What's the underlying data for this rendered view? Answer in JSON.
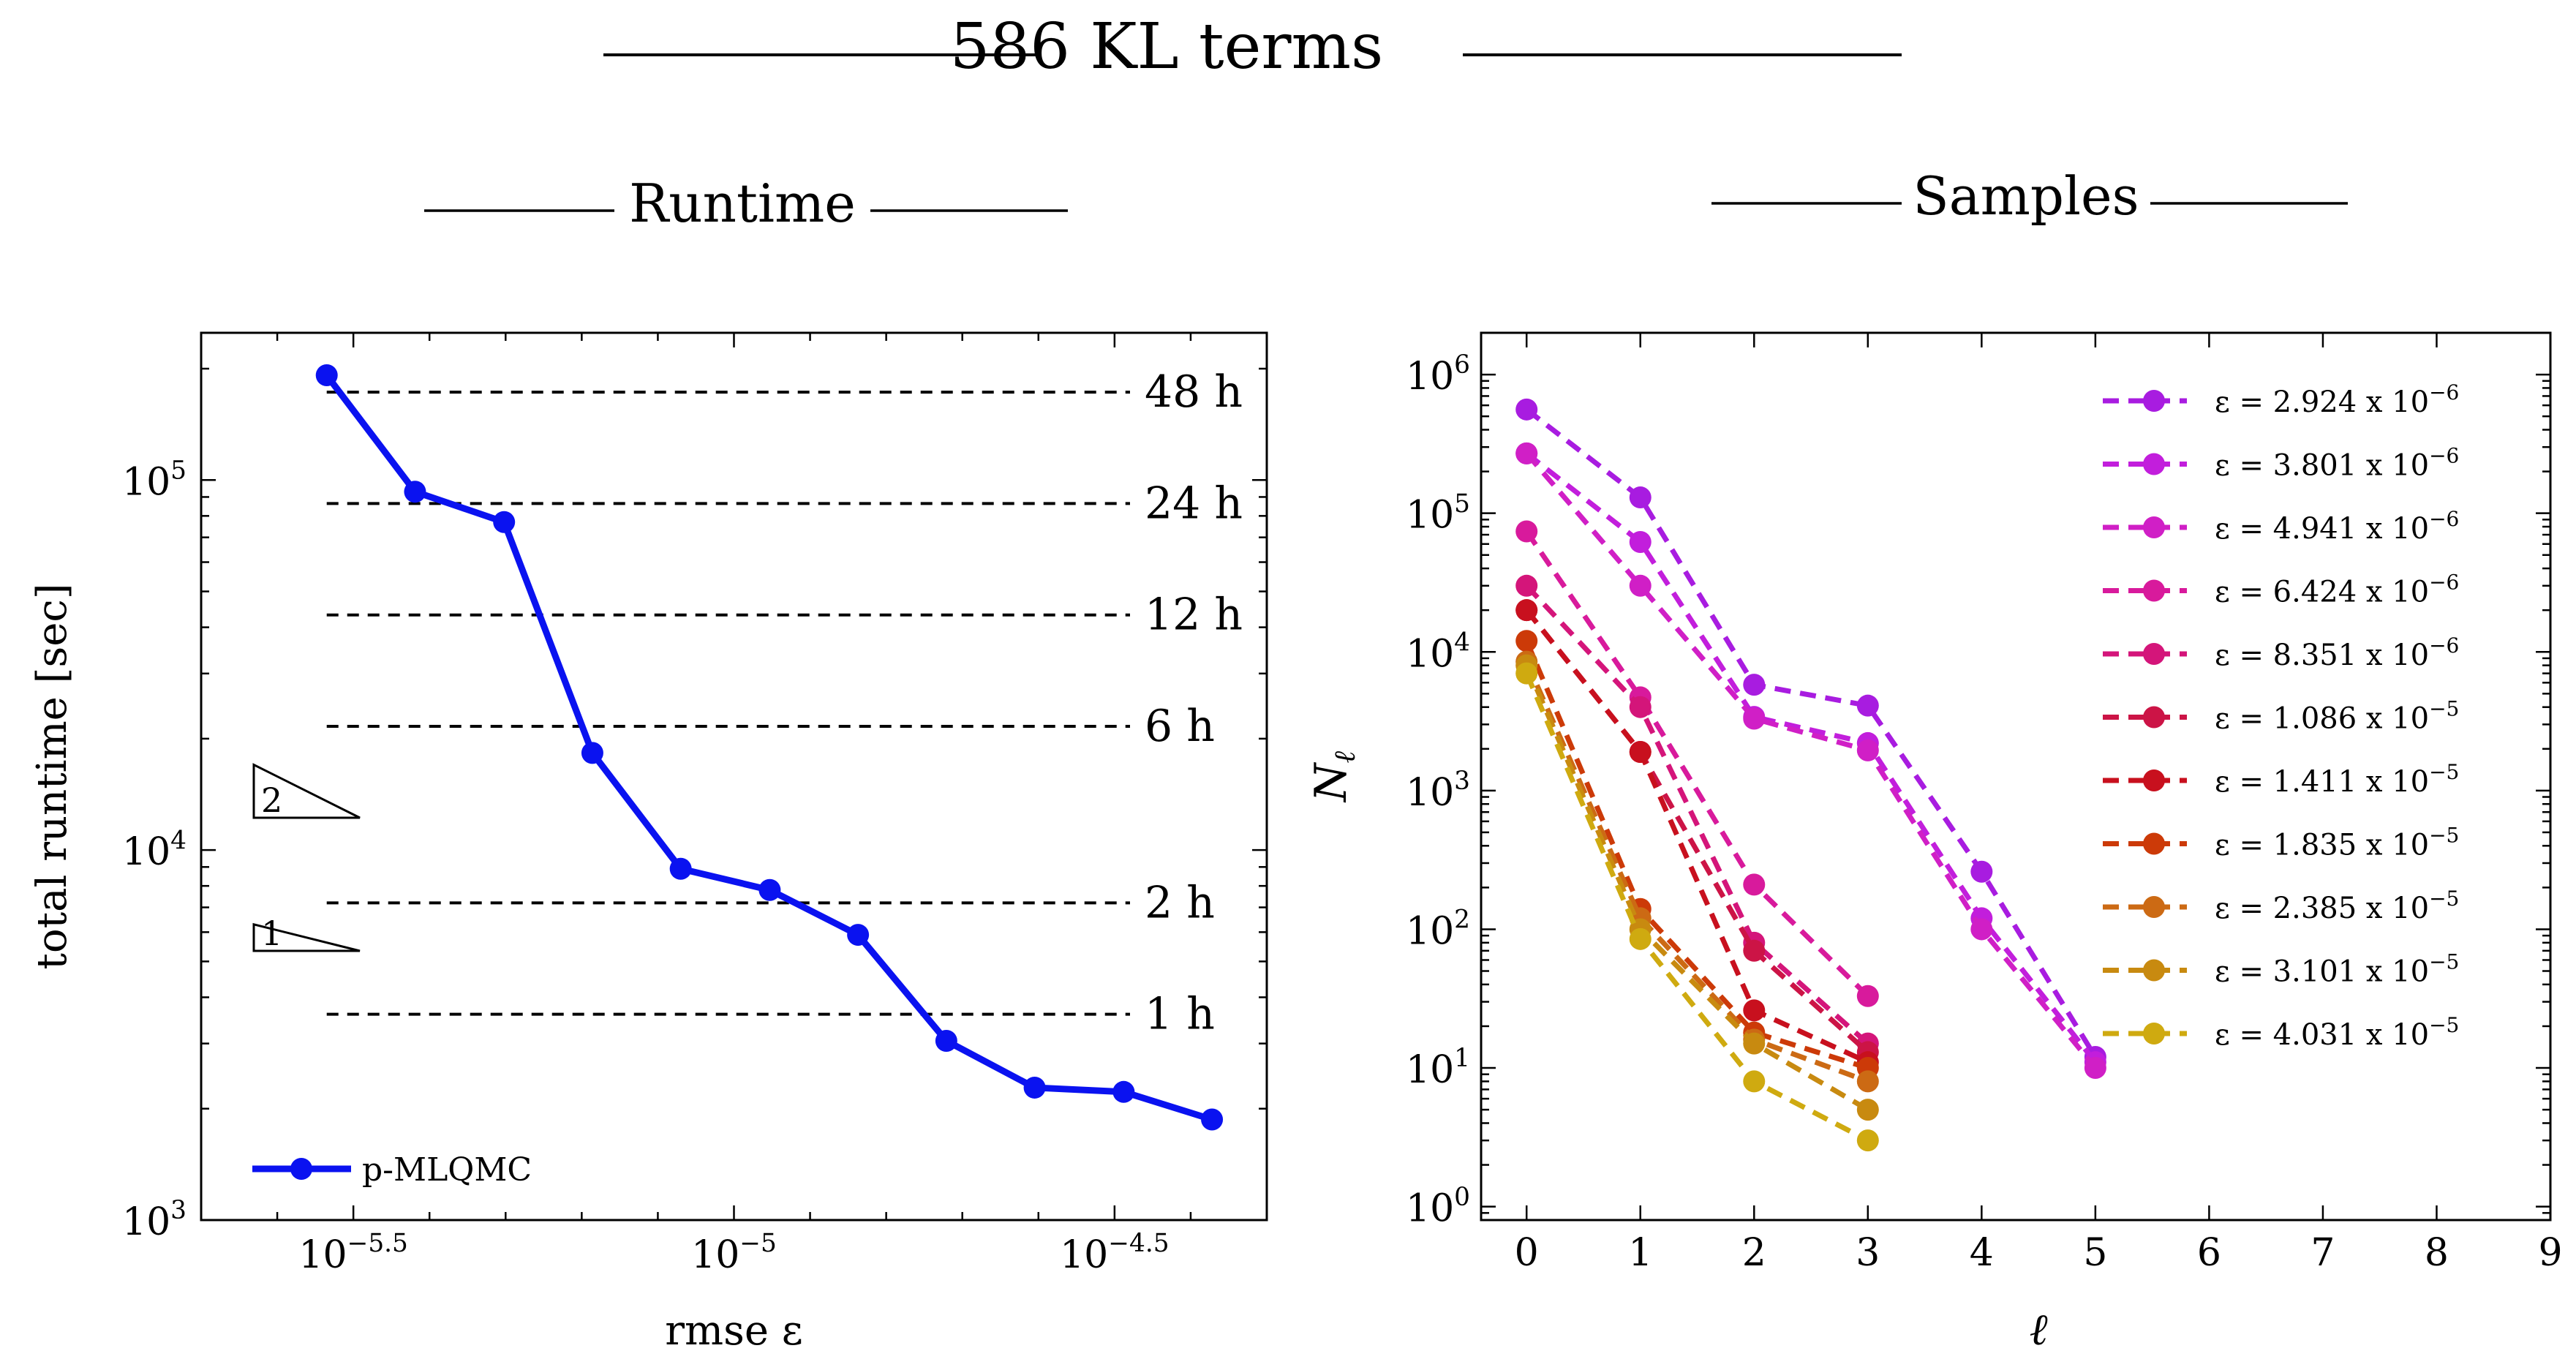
{
  "figure": {
    "title": "586 KL terms",
    "left_panel_title": "Runtime",
    "right_panel_title": "Samples"
  },
  "chart_data": [
    {
      "type": "line",
      "panel": "Runtime",
      "xscale": "log10",
      "yscale": "log10",
      "xlim_log10": [
        -5.7,
        -4.3
      ],
      "ylim": [
        1000,
        250000
      ],
      "xlabel": "rmse ε",
      "ylabel": "total runtime [sec]",
      "xticks": [
        {
          "log10": -5.5,
          "base": "10",
          "exp": "−5.5"
        },
        {
          "log10": -5.0,
          "base": "10",
          "exp": "−5"
        },
        {
          "log10": -4.5,
          "base": "10",
          "exp": "−4.5"
        }
      ],
      "yticks": [
        {
          "value": 1000,
          "base": "10",
          "exp": "3"
        },
        {
          "value": 10000,
          "base": "10",
          "exp": "4"
        },
        {
          "value": 100000,
          "base": "10",
          "exp": "5"
        }
      ],
      "series": [
        {
          "name": "p-MLQMC",
          "color": "#0a12f0",
          "x_log10": [
            -5.535,
            -5.419,
            -5.302,
            -5.186,
            -5.07,
            -4.953,
            -4.837,
            -4.721,
            -4.605,
            -4.488,
            -4.372
          ],
          "y": [
            192000,
            93000,
            77000,
            18300,
            8900,
            7800,
            5900,
            3050,
            2280,
            2220,
            1870
          ]
        }
      ],
      "reference_lines": [
        {
          "label": "48 h",
          "value": 172800
        },
        {
          "label": "24 h",
          "value": 86400
        },
        {
          "label": "12 h",
          "value": 43200
        },
        {
          "label": "6 h",
          "value": 21600
        },
        {
          "label": "2 h",
          "value": 7200
        },
        {
          "label": "1 h",
          "value": 3600
        }
      ],
      "slope_triangles": [
        {
          "label": "2",
          "slope": 2
        },
        {
          "label": "1",
          "slope": 1
        }
      ],
      "legend_position": "bottom-left"
    },
    {
      "type": "line",
      "panel": "Samples",
      "yscale": "log10",
      "xlim": [
        -0.4,
        9
      ],
      "ylim": [
        0.8,
        2000000
      ],
      "xlabel": "ℓ",
      "ylabel": "N",
      "ylabel_sub": "ℓ",
      "xticks": [
        0,
        1,
        2,
        3,
        4,
        5,
        6,
        7,
        8,
        9
      ],
      "yticks": [
        {
          "value": 1,
          "base": "10",
          "exp": "0"
        },
        {
          "value": 10,
          "base": "10",
          "exp": "1"
        },
        {
          "value": 100,
          "base": "10",
          "exp": "2"
        },
        {
          "value": 1000,
          "base": "10",
          "exp": "3"
        },
        {
          "value": 10000,
          "base": "10",
          "exp": "4"
        },
        {
          "value": 100000,
          "base": "10",
          "exp": "5"
        },
        {
          "value": 1000000,
          "base": "10",
          "exp": "6"
        }
      ],
      "legend_position": "top-right",
      "series": [
        {
          "name": "ε = 2.924 x 10",
          "exp": "−6",
          "color": "#a81ce0",
          "x": [
            0,
            1,
            2,
            3,
            4,
            5
          ],
          "y": [
            560000,
            130000,
            5800,
            4100,
            260,
            12
          ]
        },
        {
          "name": "ε = 3.801 x 10",
          "exp": "−6",
          "color": "#c21edc",
          "x": [
            0,
            1,
            2,
            3,
            4,
            5
          ],
          "y": [
            270000,
            62000,
            3400,
            2200,
            120,
            11
          ]
        },
        {
          "name": "ε = 4.941 x 10",
          "exp": "−6",
          "color": "#d01fc6",
          "x": [
            0,
            1,
            2,
            3,
            4,
            5
          ],
          "y": [
            270000,
            30000,
            3300,
            1950,
            100,
            10
          ]
        },
        {
          "name": "ε = 6.424 x 10",
          "exp": "−6",
          "color": "#d81a9c",
          "x": [
            0,
            1,
            2,
            3
          ],
          "y": [
            74000,
            4700,
            210,
            33
          ]
        },
        {
          "name": "ε = 8.351 x 10",
          "exp": "−6",
          "color": "#d4157a",
          "x": [
            0,
            1,
            2,
            3
          ],
          "y": [
            30000,
            4000,
            80,
            15
          ]
        },
        {
          "name": "ε = 1.086 x 10",
          "exp": "−5",
          "color": "#cc1446",
          "x": [
            0,
            1,
            2,
            3
          ],
          "y": [
            20000,
            1900,
            70,
            13
          ]
        },
        {
          "name": "ε = 1.411 x 10",
          "exp": "−5",
          "color": "#c8101e",
          "x": [
            0,
            1,
            2,
            3
          ],
          "y": [
            20000,
            1900,
            26,
            11
          ]
        },
        {
          "name": "ε = 1.835 x 10",
          "exp": "−5",
          "color": "#cc3a08",
          "x": [
            0,
            1,
            2,
            3
          ],
          "y": [
            12000,
            140,
            18,
            10
          ]
        },
        {
          "name": "ε = 2.385 x 10",
          "exp": "−5",
          "color": "#cc6a14",
          "x": [
            0,
            1,
            2,
            3
          ],
          "y": [
            8500,
            120,
            16,
            8
          ]
        },
        {
          "name": "ε = 3.101 x 10",
          "exp": "−5",
          "color": "#c88a10",
          "x": [
            0,
            1,
            2,
            3
          ],
          "y": [
            8000,
            100,
            15,
            5
          ]
        },
        {
          "name": "ε = 4.031 x 10",
          "exp": "−5",
          "color": "#cfaa10",
          "x": [
            0,
            1,
            2,
            3
          ],
          "y": [
            7000,
            85,
            8,
            3
          ]
        }
      ]
    }
  ]
}
